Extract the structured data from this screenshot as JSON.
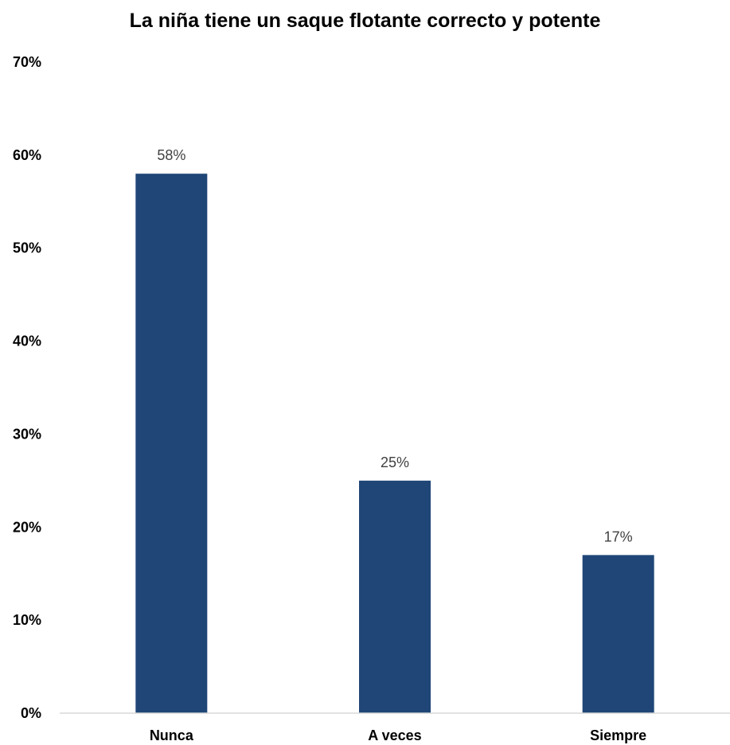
{
  "chart_data": {
    "type": "bar",
    "title": "La niña tiene un saque flotante correcto y potente",
    "categories": [
      "Nunca",
      "A veces",
      "Siempre"
    ],
    "values": [
      58,
      25,
      17
    ],
    "data_labels": [
      "58%",
      "25%",
      "17%"
    ],
    "ylim": [
      0,
      70
    ],
    "yticks": [
      0,
      10,
      20,
      30,
      40,
      50,
      60,
      70
    ],
    "ytick_labels": [
      "0%",
      "10%",
      "20%",
      "30%",
      "40%",
      "50%",
      "60%",
      "70%"
    ],
    "xlabel": "",
    "ylabel": "",
    "grid": false,
    "legend": "none",
    "bar_color": "#1F4677",
    "axis_color": "#D9D9D9"
  }
}
